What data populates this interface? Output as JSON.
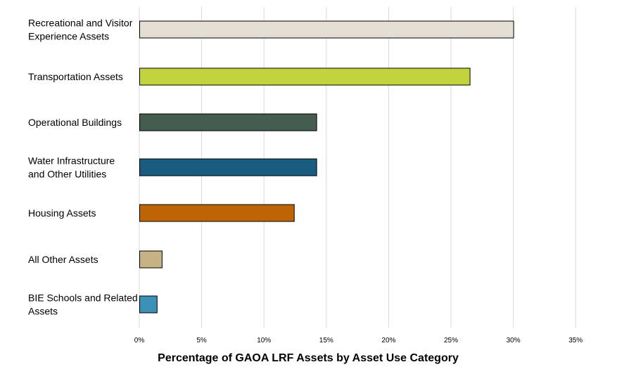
{
  "chart_data": {
    "type": "bar",
    "orientation": "horizontal",
    "title": "",
    "xlabel": "Percentage of GAOA LRF Assets by Asset Use Category",
    "ylabel": "",
    "xlim": [
      0,
      35
    ],
    "grid": true,
    "x_ticks": [
      "0%",
      "5%",
      "10%",
      "15%",
      "20%",
      "25%",
      "30%",
      "35%"
    ],
    "categories": [
      [
        "Recreational and Visitor",
        "Experience Assets"
      ],
      [
        "Transportation Assets"
      ],
      [
        "Operational Buildings"
      ],
      [
        "Water Infrastructure",
        "and Other Utilities"
      ],
      [
        "Housing Assets"
      ],
      [
        "All Other Assets"
      ],
      [
        "BIE Schools and Related",
        "Assets"
      ]
    ],
    "values": [
      30.0,
      26.5,
      14.2,
      14.2,
      12.4,
      1.8,
      1.4
    ],
    "colors": [
      "#e3ddd4",
      "#c3d33e",
      "#445d4e",
      "#1a5c80",
      "#bd6505",
      "#c6b283",
      "#3a90b5"
    ]
  }
}
